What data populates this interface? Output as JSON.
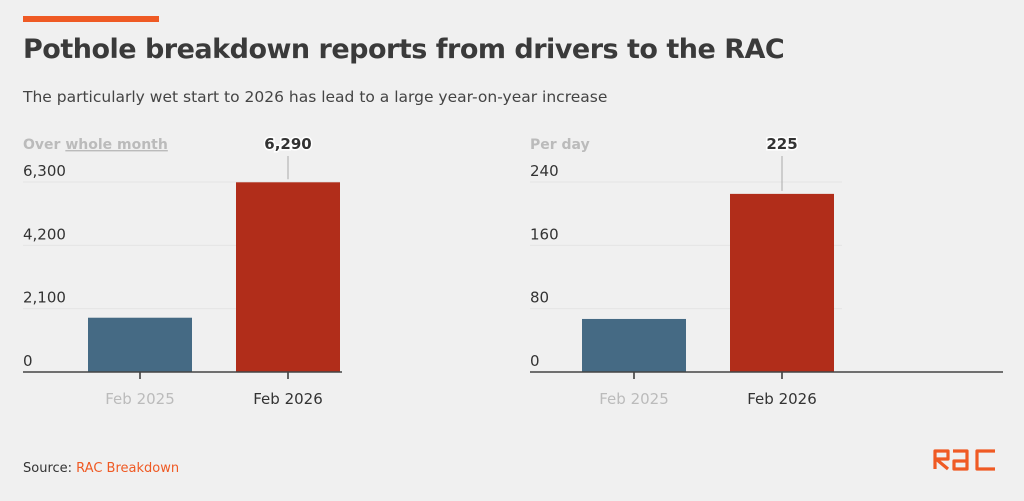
{
  "header": {
    "title": "Pothole breakdown reports from drivers to the RAC",
    "subtitle": "The particularly wet start to 2026 has lead to a large year-on-year increase"
  },
  "footer": {
    "source_label": "Source: ",
    "source_link": "RAC Breakdown",
    "logo_text": "RAC"
  },
  "colors": {
    "bar_2025": "#456a84",
    "bar_2026": "#b12d1a",
    "accent": "#ef5a24"
  },
  "chart_data": [
    {
      "type": "bar",
      "title": "Over whole month",
      "title_prefix": "Over ",
      "title_link": "whole month",
      "categories": [
        "Feb 2025",
        "Feb 2026"
      ],
      "values": [
        1800,
        6290
      ],
      "yticks": [
        0,
        2100,
        4200,
        6300
      ],
      "ytick_labels": [
        "0",
        "2,100",
        "4,200",
        "6,300"
      ],
      "ylim": [
        0,
        6300
      ],
      "annotation": {
        "category": "Feb 2026",
        "label": "6,290"
      }
    },
    {
      "type": "bar",
      "title": "Per day",
      "categories": [
        "Feb 2025",
        "Feb 2026"
      ],
      "values": [
        67,
        225
      ],
      "yticks": [
        0,
        80,
        160,
        240
      ],
      "ytick_labels": [
        "0",
        "80",
        "160",
        "240"
      ],
      "ylim": [
        0,
        240
      ],
      "annotation": {
        "category": "Feb 2026",
        "label": "225"
      }
    }
  ]
}
